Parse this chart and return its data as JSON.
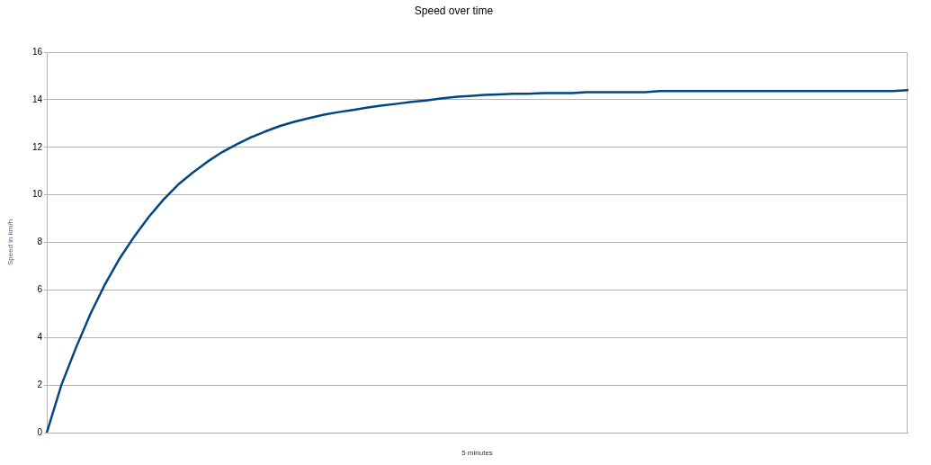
{
  "chart_data": {
    "type": "line",
    "title": "Speed over time",
    "xlabel": "5 minutes",
    "ylabel": "Speed in km/h",
    "categories": [
      null,
      null,
      null,
      null,
      null,
      null,
      null,
      null,
      null,
      null,
      null,
      null,
      null,
      null,
      null,
      null,
      null,
      null,
      null,
      null,
      null,
      null,
      null,
      null,
      null,
      null,
      null,
      null,
      null,
      null,
      null,
      null,
      null,
      null,
      null,
      null,
      null,
      null,
      null,
      null,
      null,
      null,
      null,
      null,
      null,
      null,
      null,
      null,
      null,
      null,
      null,
      null,
      null,
      null,
      null,
      null,
      null,
      null,
      null,
      null
    ],
    "series": [
      {
        "color": "#004586",
        "values": [
          0,
          2.0,
          3.57,
          5.0,
          6.25,
          7.33,
          8.25,
          9.08,
          9.8,
          10.43,
          10.93,
          11.39,
          11.79,
          12.12,
          12.42,
          12.67,
          12.9,
          13.08,
          13.23,
          13.37,
          13.48,
          13.57,
          13.67,
          13.76,
          13.83,
          13.91,
          13.97,
          14.05,
          14.12,
          14.16,
          14.2,
          14.22,
          14.25,
          14.25,
          14.28,
          14.28,
          14.28,
          14.32,
          14.32,
          14.32,
          14.32,
          14.32,
          14.36,
          14.36,
          14.36,
          14.36,
          14.36,
          14.36,
          14.36,
          14.36,
          14.36,
          14.36,
          14.36,
          14.36,
          14.36,
          14.36,
          14.36,
          14.36,
          14.36,
          14.4
        ]
      }
    ],
    "ylim": [
      0,
      16
    ],
    "yticks": [
      0,
      2,
      4,
      6,
      8,
      10,
      12,
      14,
      16
    ],
    "grid": "y",
    "tick_labels": "y",
    "marker": "none",
    "line_style": "solid"
  }
}
